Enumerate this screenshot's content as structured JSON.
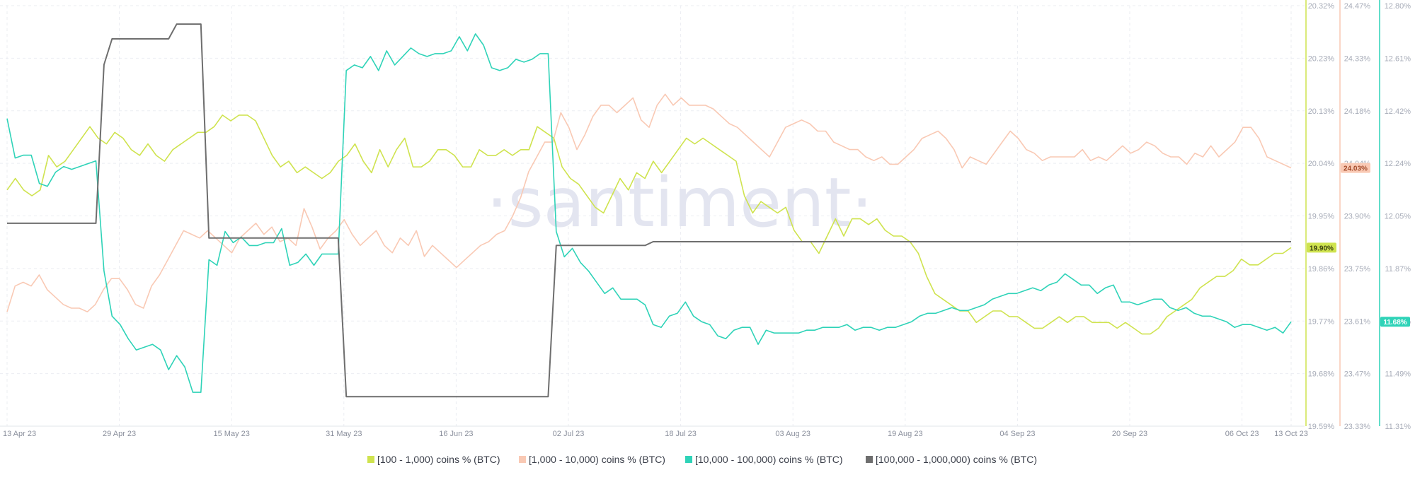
{
  "watermark": "·santiment·",
  "chart_data": {
    "type": "line",
    "x_range": [
      "2023-04-13",
      "2023-10-13"
    ],
    "x_ticks": [
      "13 Apr 23",
      "29 Apr 23",
      "15 May 23",
      "31 May 23",
      "16 Jun 23",
      "02 Jul 23",
      "18 Jul 23",
      "03 Aug 23",
      "19 Aug 23",
      "04 Sep 23",
      "20 Sep 23",
      "06 Oct 23",
      "13 Oct 23"
    ],
    "grid": true,
    "legend_position": "bottom",
    "axes": [
      {
        "id": "a1",
        "color": "#cfe34f",
        "ticks": [
          "20.32%",
          "20.23%",
          "20.13%",
          "20.04%",
          "19.95%",
          "19.86%",
          "19.77%",
          "19.68%",
          "19.59%"
        ],
        "ylim": [
          19.59,
          20.32
        ]
      },
      {
        "id": "a2",
        "color": "#f9c9b4",
        "ticks": [
          "24.47%",
          "24.33%",
          "24.18%",
          "24.04%",
          "23.90%",
          "23.75%",
          "23.61%",
          "23.47%",
          "23.33%"
        ],
        "ylim": [
          23.33,
          24.47
        ]
      },
      {
        "id": "a3",
        "color": "#2fd3b8",
        "ticks": [
          "12.80%",
          "12.61%",
          "12.42%",
          "12.24%",
          "12.05%",
          "11.87%",
          "11.68%",
          "11.49%",
          "11.31%"
        ],
        "ylim": [
          11.31,
          12.8
        ]
      }
    ],
    "series": [
      {
        "name": "[100 - 1,000) coins % (BTC)",
        "axis": "a1",
        "color": "#cfe34f",
        "last_label": "19.90%",
        "values": [
          20.0,
          20.02,
          20.0,
          19.99,
          20.0,
          20.06,
          20.04,
          20.05,
          20.07,
          20.09,
          20.11,
          20.09,
          20.08,
          20.1,
          20.09,
          20.07,
          20.06,
          20.08,
          20.06,
          20.05,
          20.07,
          20.08,
          20.09,
          20.1,
          20.1,
          20.11,
          20.13,
          20.12,
          20.13,
          20.13,
          20.12,
          20.09,
          20.06,
          20.04,
          20.05,
          20.03,
          20.04,
          20.03,
          20.02,
          20.03,
          20.05,
          20.06,
          20.08,
          20.05,
          20.03,
          20.07,
          20.04,
          20.07,
          20.09,
          20.04,
          20.04,
          20.05,
          20.07,
          20.07,
          20.06,
          20.04,
          20.04,
          20.07,
          20.06,
          20.06,
          20.07,
          20.06,
          20.07,
          20.07,
          20.11,
          20.1,
          20.09,
          20.04,
          20.02,
          20.01,
          19.99,
          19.97,
          19.96,
          19.99,
          20.02,
          20.0,
          20.03,
          20.02,
          20.05,
          20.03,
          20.05,
          20.07,
          20.09,
          20.08,
          20.09,
          20.08,
          20.07,
          20.06,
          20.05,
          19.99,
          19.96,
          19.98,
          19.97,
          19.96,
          19.97,
          19.93,
          19.91,
          19.91,
          19.89,
          19.92,
          19.95,
          19.92,
          19.95,
          19.95,
          19.94,
          19.95,
          19.93,
          19.92,
          19.92,
          19.91,
          19.89,
          19.85,
          19.82,
          19.81,
          19.8,
          19.79,
          19.79,
          19.77,
          19.78,
          19.79,
          19.79,
          19.78,
          19.78,
          19.77,
          19.76,
          19.76,
          19.77,
          19.78,
          19.77,
          19.78,
          19.78,
          19.77,
          19.77,
          19.77,
          19.76,
          19.77,
          19.76,
          19.75,
          19.75,
          19.76,
          19.78,
          19.79,
          19.8,
          19.81,
          19.83,
          19.84,
          19.85,
          19.85,
          19.86,
          19.88,
          19.87,
          19.87,
          19.88,
          19.89,
          19.89,
          19.9
        ]
      },
      {
        "name": "[1,000 - 10,000) coins % (BTC)",
        "axis": "a2",
        "color": "#f9c9b4",
        "last_label": "24.03%",
        "values": [
          23.64,
          23.71,
          23.72,
          23.71,
          23.74,
          23.7,
          23.68,
          23.66,
          23.65,
          23.65,
          23.64,
          23.66,
          23.7,
          23.73,
          23.73,
          23.7,
          23.66,
          23.65,
          23.71,
          23.74,
          23.78,
          23.82,
          23.86,
          23.85,
          23.84,
          23.86,
          23.84,
          23.82,
          23.8,
          23.84,
          23.86,
          23.88,
          23.85,
          23.87,
          23.83,
          23.84,
          23.82,
          23.92,
          23.87,
          23.81,
          23.84,
          23.86,
          23.89,
          23.85,
          23.82,
          23.84,
          23.86,
          23.82,
          23.8,
          23.84,
          23.82,
          23.86,
          23.79,
          23.82,
          23.8,
          23.78,
          23.76,
          23.78,
          23.8,
          23.82,
          23.83,
          23.85,
          23.86,
          23.9,
          23.95,
          24.02,
          24.06,
          24.1,
          24.1,
          24.18,
          24.14,
          24.08,
          24.12,
          24.17,
          24.2,
          24.2,
          24.18,
          24.2,
          24.22,
          24.16,
          24.14,
          24.2,
          24.23,
          24.2,
          24.22,
          24.2,
          24.2,
          24.2,
          24.19,
          24.17,
          24.15,
          24.14,
          24.12,
          24.1,
          24.08,
          24.06,
          24.1,
          24.14,
          24.15,
          24.16,
          24.15,
          24.13,
          24.13,
          24.1,
          24.09,
          24.08,
          24.08,
          24.06,
          24.05,
          24.06,
          24.04,
          24.04,
          24.06,
          24.08,
          24.11,
          24.12,
          24.13,
          24.11,
          24.08,
          24.03,
          24.06,
          24.05,
          24.04,
          24.07,
          24.1,
          24.13,
          24.11,
          24.08,
          24.07,
          24.05,
          24.06,
          24.06,
          24.06,
          24.06,
          24.08,
          24.05,
          24.06,
          24.05,
          24.07,
          24.09,
          24.07,
          24.08,
          24.1,
          24.09,
          24.07,
          24.06,
          24.06,
          24.04,
          24.07,
          24.06,
          24.09,
          24.06,
          24.08,
          24.1,
          24.14,
          24.14,
          24.11,
          24.06,
          24.05,
          24.04,
          24.03
        ]
      },
      {
        "name": "[10,000 - 100,000) coins % (BTC)",
        "axis": "a3",
        "color": "#2fd3b8",
        "last_label": "11.68%",
        "values": [
          12.4,
          12.26,
          12.27,
          12.27,
          12.17,
          12.16,
          12.21,
          12.23,
          12.22,
          12.23,
          12.24,
          12.25,
          11.86,
          11.7,
          11.67,
          11.62,
          11.58,
          11.59,
          11.6,
          11.58,
          11.51,
          11.56,
          11.52,
          11.43,
          11.43,
          11.9,
          11.88,
          12.0,
          11.96,
          11.98,
          11.95,
          11.95,
          11.96,
          11.96,
          12.01,
          11.88,
          11.89,
          11.92,
          11.88,
          11.92,
          11.92,
          11.92,
          12.57,
          12.59,
          12.58,
          12.62,
          12.57,
          12.64,
          12.59,
          12.62,
          12.65,
          12.63,
          12.62,
          12.63,
          12.63,
          12.64,
          12.69,
          12.64,
          12.7,
          12.66,
          12.58,
          12.57,
          12.58,
          12.61,
          12.6,
          12.61,
          12.63,
          12.63,
          12.0,
          11.91,
          11.94,
          11.89,
          11.86,
          11.82,
          11.78,
          11.8,
          11.76,
          11.76,
          11.76,
          11.74,
          11.67,
          11.66,
          11.7,
          11.71,
          11.75,
          11.7,
          11.68,
          11.67,
          11.63,
          11.62,
          11.65,
          11.66,
          11.66,
          11.6,
          11.65,
          11.64,
          11.64,
          11.64,
          11.64,
          11.65,
          11.65,
          11.66,
          11.66,
          11.66,
          11.67,
          11.65,
          11.66,
          11.66,
          11.65,
          11.66,
          11.66,
          11.67,
          11.68,
          11.7,
          11.71,
          11.71,
          11.72,
          11.73,
          11.72,
          11.72,
          11.73,
          11.74,
          11.76,
          11.77,
          11.78,
          11.78,
          11.79,
          11.8,
          11.79,
          11.81,
          11.82,
          11.85,
          11.83,
          11.81,
          11.81,
          11.78,
          11.8,
          11.81,
          11.75,
          11.75,
          11.74,
          11.75,
          11.76,
          11.76,
          11.73,
          11.72,
          11.73,
          11.71,
          11.7,
          11.7,
          11.69,
          11.68,
          11.66,
          11.67,
          11.67,
          11.66,
          11.65,
          11.66,
          11.64,
          11.68
        ]
      },
      {
        "name": "[100,000  - 1,000,000) coins % (BTC)",
        "axis": "a2",
        "color": "#6e6e6e",
        "values": [
          23.88,
          23.88,
          23.88,
          23.88,
          23.88,
          23.88,
          23.88,
          23.88,
          23.88,
          23.88,
          23.88,
          23.88,
          24.31,
          24.38,
          24.38,
          24.38,
          24.38,
          24.38,
          24.38,
          24.38,
          24.38,
          24.42,
          24.42,
          24.42,
          24.42,
          23.84,
          23.84,
          23.84,
          23.84,
          23.84,
          23.84,
          23.84,
          23.84,
          23.84,
          23.84,
          23.84,
          23.84,
          23.84,
          23.84,
          23.84,
          23.84,
          23.84,
          23.41,
          23.41,
          23.41,
          23.41,
          23.41,
          23.41,
          23.41,
          23.41,
          23.41,
          23.41,
          23.41,
          23.41,
          23.41,
          23.41,
          23.41,
          23.41,
          23.41,
          23.41,
          23.41,
          23.41,
          23.41,
          23.41,
          23.41,
          23.41,
          23.41,
          23.41,
          23.82,
          23.82,
          23.82,
          23.82,
          23.82,
          23.82,
          23.82,
          23.82,
          23.82,
          23.82,
          23.82,
          23.82,
          23.83,
          23.83,
          23.83,
          23.83,
          23.83,
          23.83,
          23.83,
          23.83,
          23.83,
          23.83,
          23.83,
          23.83,
          23.83,
          23.83,
          23.83,
          23.83,
          23.83,
          23.83,
          23.83,
          23.83,
          23.83,
          23.83,
          23.83,
          23.83,
          23.83,
          23.83,
          23.83,
          23.83,
          23.83,
          23.83,
          23.83,
          23.83,
          23.83,
          23.83,
          23.83,
          23.83,
          23.83,
          23.83,
          23.83,
          23.83,
          23.83,
          23.83,
          23.83,
          23.83,
          23.83,
          23.83,
          23.83,
          23.83,
          23.83,
          23.83,
          23.83,
          23.83,
          23.83,
          23.83,
          23.83,
          23.83,
          23.83,
          23.83,
          23.83,
          23.83,
          23.83,
          23.83,
          23.83,
          23.83,
          23.83,
          23.83,
          23.83,
          23.83,
          23.83,
          23.83,
          23.83,
          23.83,
          23.83,
          23.83,
          23.83,
          23.83,
          23.83,
          23.83,
          23.83,
          23.83
        ]
      }
    ]
  }
}
